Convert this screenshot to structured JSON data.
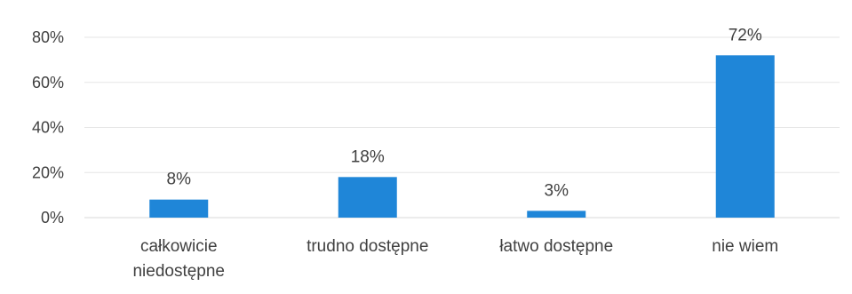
{
  "chart_data": {
    "type": "bar",
    "title": "",
    "xlabel": "",
    "ylabel": "",
    "categories": [
      "całkowicie niedostępne",
      "trudno dostępne",
      "łatwo dostępne",
      "nie wiem"
    ],
    "category_lines": [
      [
        "całkowicie",
        "niedostępne"
      ],
      [
        "trudno dostępne"
      ],
      [
        "łatwo dostępne"
      ],
      [
        "nie wiem"
      ]
    ],
    "values": [
      8,
      18,
      3,
      72
    ],
    "data_labels": [
      "8%",
      "18%",
      "3%",
      "72%"
    ],
    "ylim": [
      0,
      80
    ],
    "yticks": [
      0,
      20,
      40,
      60,
      80
    ],
    "ytick_labels": [
      "0%",
      "20%",
      "40%",
      "60%",
      "80%"
    ],
    "grid": true,
    "legend": "none",
    "bar_color": "#1f86d8"
  }
}
